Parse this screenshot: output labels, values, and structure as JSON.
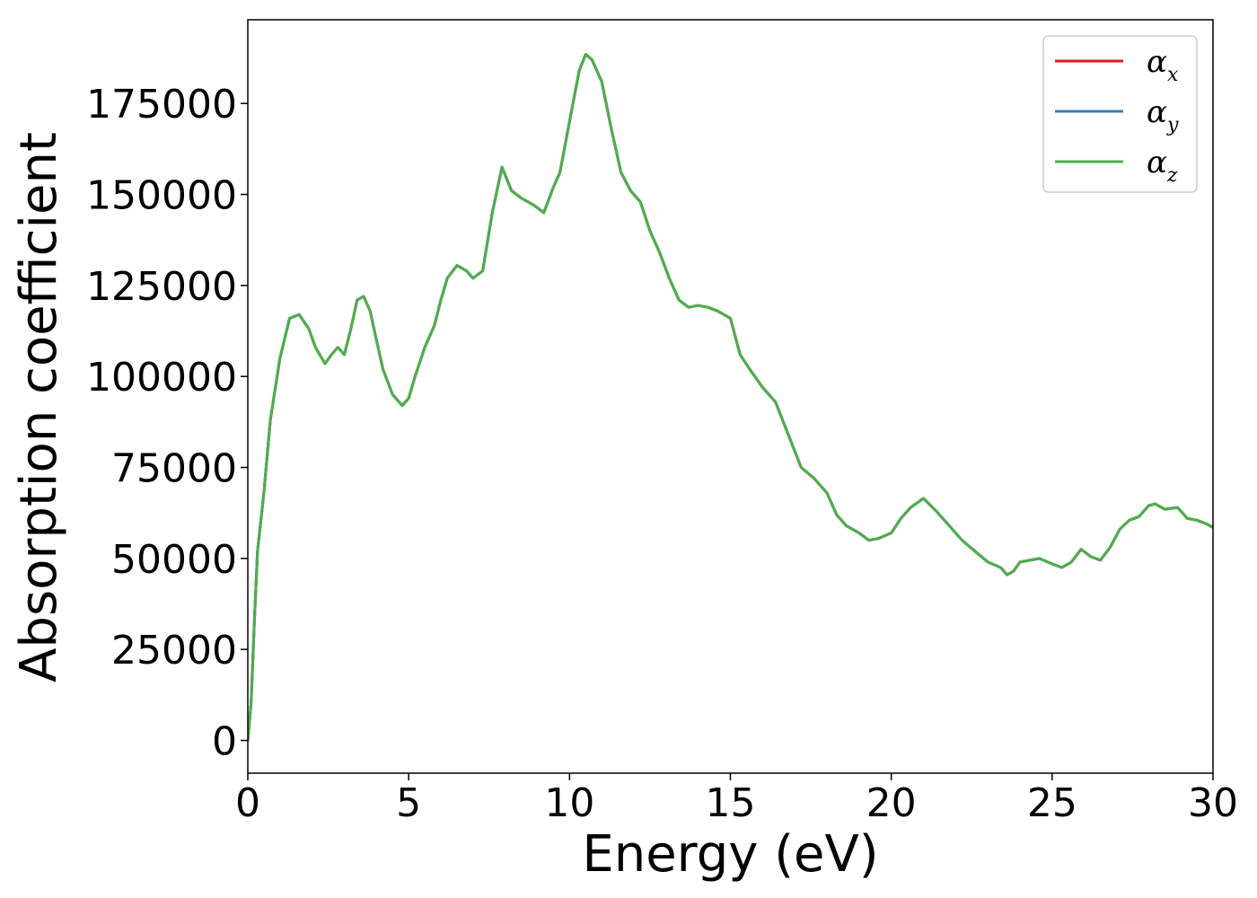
{
  "chart_data": {
    "type": "line",
    "title": "",
    "xlabel": "Energy (eV)",
    "ylabel": "Absorption coefficient",
    "xlim": [
      0,
      30
    ],
    "ylim": [
      -9000,
      198000
    ],
    "x_ticks": [
      0,
      5,
      10,
      15,
      20,
      25,
      30
    ],
    "x_tick_labels": [
      "0",
      "5",
      "10",
      "15",
      "20",
      "25",
      "30"
    ],
    "y_ticks": [
      0,
      25000,
      50000,
      75000,
      100000,
      125000,
      150000,
      175000
    ],
    "y_tick_labels": [
      "0",
      "25000",
      "50000",
      "75000",
      "100000",
      "125000",
      "150000",
      "175000"
    ],
    "grid": false,
    "legend_position": "top-right",
    "series": [
      {
        "name": "α_x",
        "symbol": "α",
        "subscript": "x",
        "color": "#e41a1c",
        "x": [
          0,
          0.1,
          0.2,
          0.3,
          0.5,
          0.7,
          1.0,
          1.3,
          1.6,
          1.9,
          2.1,
          2.4,
          2.6,
          2.8,
          3.0,
          3.2,
          3.4,
          3.6,
          3.8,
          4.0,
          4.2,
          4.5,
          4.8,
          5.0,
          5.2,
          5.5,
          5.8,
          6.0,
          6.2,
          6.5,
          6.8,
          7.0,
          7.3,
          7.6,
          7.9,
          8.2,
          8.5,
          8.9,
          9.2,
          9.5,
          9.7,
          10.0,
          10.3,
          10.5,
          10.7,
          11.0,
          11.3,
          11.6,
          11.9,
          12.2,
          12.5,
          12.8,
          13.1,
          13.4,
          13.7,
          14.0,
          14.3,
          14.6,
          15.0,
          15.3,
          15.6,
          16.0,
          16.4,
          16.8,
          17.2,
          17.6,
          18.0,
          18.3,
          18.6,
          19.0,
          19.3,
          19.6,
          20.0,
          20.3,
          20.6,
          21.0,
          21.4,
          21.8,
          22.2,
          22.6,
          23.0,
          23.4,
          23.6,
          23.8,
          24.0,
          24.3,
          24.6,
          25.0,
          25.3,
          25.6,
          25.9,
          26.2,
          26.5,
          26.8,
          27.1,
          27.4,
          27.7,
          28.0,
          28.2,
          28.5,
          28.9,
          29.2,
          29.5,
          29.8,
          30.0
        ],
        "y": [
          0,
          10000,
          32000,
          52000,
          68000,
          88000,
          105000,
          116000,
          117000,
          113000,
          108000,
          103500,
          106000,
          108000,
          106000,
          113000,
          121000,
          122000,
          118000,
          110000,
          102000,
          95000,
          92000,
          94000,
          100000,
          108000,
          114000,
          121000,
          127000,
          130500,
          129000,
          127000,
          129000,
          145000,
          157500,
          151000,
          149000,
          147000,
          145000,
          152000,
          156000,
          170000,
          184000,
          188500,
          187000,
          181000,
          168000,
          156000,
          151000,
          148000,
          140000,
          134000,
          127000,
          121000,
          119000,
          119500,
          119000,
          118000,
          116000,
          106000,
          102000,
          97000,
          93000,
          84000,
          75000,
          72000,
          68000,
          62000,
          59000,
          57000,
          55000,
          55500,
          57000,
          61000,
          64000,
          66500,
          63000,
          59000,
          55000,
          52000,
          49000,
          47500,
          45500,
          46500,
          49000,
          49500,
          50000,
          48500,
          47500,
          49000,
          52500,
          50500,
          49500,
          53000,
          58000,
          60500,
          61500,
          64500,
          65000,
          63500,
          64000,
          61000,
          60500,
          59500,
          58500
        ]
      },
      {
        "name": "α_y",
        "symbol": "α",
        "subscript": "y",
        "color": "#377eb8",
        "x": [
          0,
          0.1,
          0.2,
          0.3,
          0.5,
          0.7,
          1.0,
          1.3,
          1.6,
          1.9,
          2.1,
          2.4,
          2.6,
          2.8,
          3.0,
          3.2,
          3.4,
          3.6,
          3.8,
          4.0,
          4.2,
          4.5,
          4.8,
          5.0,
          5.2,
          5.5,
          5.8,
          6.0,
          6.2,
          6.5,
          6.8,
          7.0,
          7.3,
          7.6,
          7.9,
          8.2,
          8.5,
          8.9,
          9.2,
          9.5,
          9.7,
          10.0,
          10.3,
          10.5,
          10.7,
          11.0,
          11.3,
          11.6,
          11.9,
          12.2,
          12.5,
          12.8,
          13.1,
          13.4,
          13.7,
          14.0,
          14.3,
          14.6,
          15.0,
          15.3,
          15.6,
          16.0,
          16.4,
          16.8,
          17.2,
          17.6,
          18.0,
          18.3,
          18.6,
          19.0,
          19.3,
          19.6,
          20.0,
          20.3,
          20.6,
          21.0,
          21.4,
          21.8,
          22.2,
          22.6,
          23.0,
          23.4,
          23.6,
          23.8,
          24.0,
          24.3,
          24.6,
          25.0,
          25.3,
          25.6,
          25.9,
          26.2,
          26.5,
          26.8,
          27.1,
          27.4,
          27.7,
          28.0,
          28.2,
          28.5,
          28.9,
          29.2,
          29.5,
          29.8,
          30.0
        ],
        "y": [
          0,
          10000,
          32000,
          52000,
          68000,
          88000,
          105000,
          116000,
          117000,
          113000,
          108000,
          103500,
          106000,
          108000,
          106000,
          113000,
          121000,
          122000,
          118000,
          110000,
          102000,
          95000,
          92000,
          94000,
          100000,
          108000,
          114000,
          121000,
          127000,
          130500,
          129000,
          127000,
          129000,
          145000,
          157500,
          151000,
          149000,
          147000,
          145000,
          152000,
          156000,
          170000,
          184000,
          188500,
          187000,
          181000,
          168000,
          156000,
          151000,
          148000,
          140000,
          134000,
          127000,
          121000,
          119000,
          119500,
          119000,
          118000,
          116000,
          106000,
          102000,
          97000,
          93000,
          84000,
          75000,
          72000,
          68000,
          62000,
          59000,
          57000,
          55000,
          55500,
          57000,
          61000,
          64000,
          66500,
          63000,
          59000,
          55000,
          52000,
          49000,
          47500,
          45500,
          46500,
          49000,
          49500,
          50000,
          48500,
          47500,
          49000,
          52500,
          50500,
          49500,
          53000,
          58000,
          60500,
          61500,
          64500,
          65000,
          63500,
          64000,
          61000,
          60500,
          59500,
          58500
        ]
      },
      {
        "name": "α_z",
        "symbol": "α",
        "subscript": "z",
        "color": "#4daf4a",
        "x": [
          0,
          0.1,
          0.2,
          0.3,
          0.5,
          0.7,
          1.0,
          1.3,
          1.6,
          1.9,
          2.1,
          2.4,
          2.6,
          2.8,
          3.0,
          3.2,
          3.4,
          3.6,
          3.8,
          4.0,
          4.2,
          4.5,
          4.8,
          5.0,
          5.2,
          5.5,
          5.8,
          6.0,
          6.2,
          6.5,
          6.8,
          7.0,
          7.3,
          7.6,
          7.9,
          8.2,
          8.5,
          8.9,
          9.2,
          9.5,
          9.7,
          10.0,
          10.3,
          10.5,
          10.7,
          11.0,
          11.3,
          11.6,
          11.9,
          12.2,
          12.5,
          12.8,
          13.1,
          13.4,
          13.7,
          14.0,
          14.3,
          14.6,
          15.0,
          15.3,
          15.6,
          16.0,
          16.4,
          16.8,
          17.2,
          17.6,
          18.0,
          18.3,
          18.6,
          19.0,
          19.3,
          19.6,
          20.0,
          20.3,
          20.6,
          21.0,
          21.4,
          21.8,
          22.2,
          22.6,
          23.0,
          23.4,
          23.6,
          23.8,
          24.0,
          24.3,
          24.6,
          25.0,
          25.3,
          25.6,
          25.9,
          26.2,
          26.5,
          26.8,
          27.1,
          27.4,
          27.7,
          28.0,
          28.2,
          28.5,
          28.9,
          29.2,
          29.5,
          29.8,
          30.0
        ],
        "y": [
          0,
          10000,
          32000,
          52000,
          68000,
          88000,
          105000,
          116000,
          117000,
          113000,
          108000,
          103500,
          106000,
          108000,
          106000,
          113000,
          121000,
          122000,
          118000,
          110000,
          102000,
          95000,
          92000,
          94000,
          100000,
          108000,
          114000,
          121000,
          127000,
          130500,
          129000,
          127000,
          129000,
          145000,
          157500,
          151000,
          149000,
          147000,
          145000,
          152000,
          156000,
          170000,
          184000,
          188500,
          187000,
          181000,
          168000,
          156000,
          151000,
          148000,
          140000,
          134000,
          127000,
          121000,
          119000,
          119500,
          119000,
          118000,
          116000,
          106000,
          102000,
          97000,
          93000,
          84000,
          75000,
          72000,
          68000,
          62000,
          59000,
          57000,
          55000,
          55500,
          57000,
          61000,
          64000,
          66500,
          63000,
          59000,
          55000,
          52000,
          49000,
          47500,
          45500,
          46500,
          49000,
          49500,
          50000,
          48500,
          47500,
          49000,
          52500,
          50500,
          49500,
          53000,
          58000,
          60500,
          61500,
          64500,
          65000,
          63500,
          64000,
          61000,
          60500,
          59500,
          58500
        ]
      }
    ]
  }
}
